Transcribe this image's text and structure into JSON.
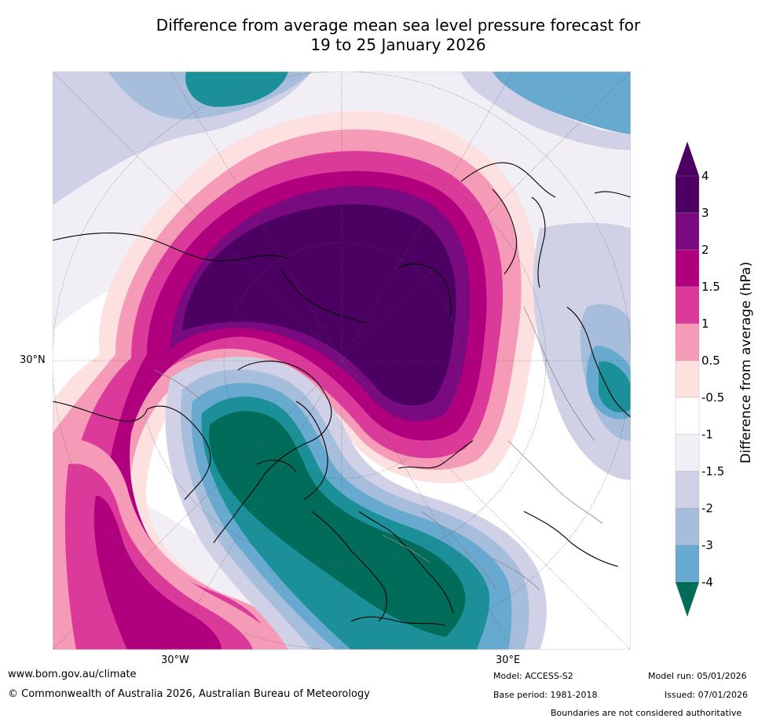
{
  "title": {
    "line1": "Difference from average mean sea level pressure forecast for",
    "line2": "19 to 25 January 2026"
  },
  "map": {
    "projection": "north-polar-stereographic",
    "lat_label": "30°N",
    "lon_labels": [
      "30°W",
      "30°E"
    ],
    "legend": {
      "title": "Difference from average (hPa)",
      "ticks": [
        "4",
        "3",
        "2",
        "1.5",
        "1",
        "0.5",
        "-0.5",
        "-1",
        "-1.5",
        "-2",
        "-3",
        "-4"
      ],
      "colors": [
        "#4b0062",
        "#7a0a7f",
        "#b1007e",
        "#dc3a9b",
        "#f59ab7",
        "#fde0e0",
        "#ffffff",
        "#f1eef6",
        "#d0d0e6",
        "#a6bddb",
        "#67a9cf",
        "#1c9099",
        "#016c59"
      ]
    }
  },
  "footer": {
    "url": "www.bom.gov.au/climate",
    "copyright": "© Commonwealth of Australia 2026, Australian Bureau of Meteorology",
    "model": "Model: ACCESS-S2",
    "base_period": "Base period: 1981-2018",
    "model_run": "Model run: 05/01/2026",
    "issued": "Issued: 07/01/2026",
    "disclaimer": "Boundaries are not considered authoritative"
  }
}
